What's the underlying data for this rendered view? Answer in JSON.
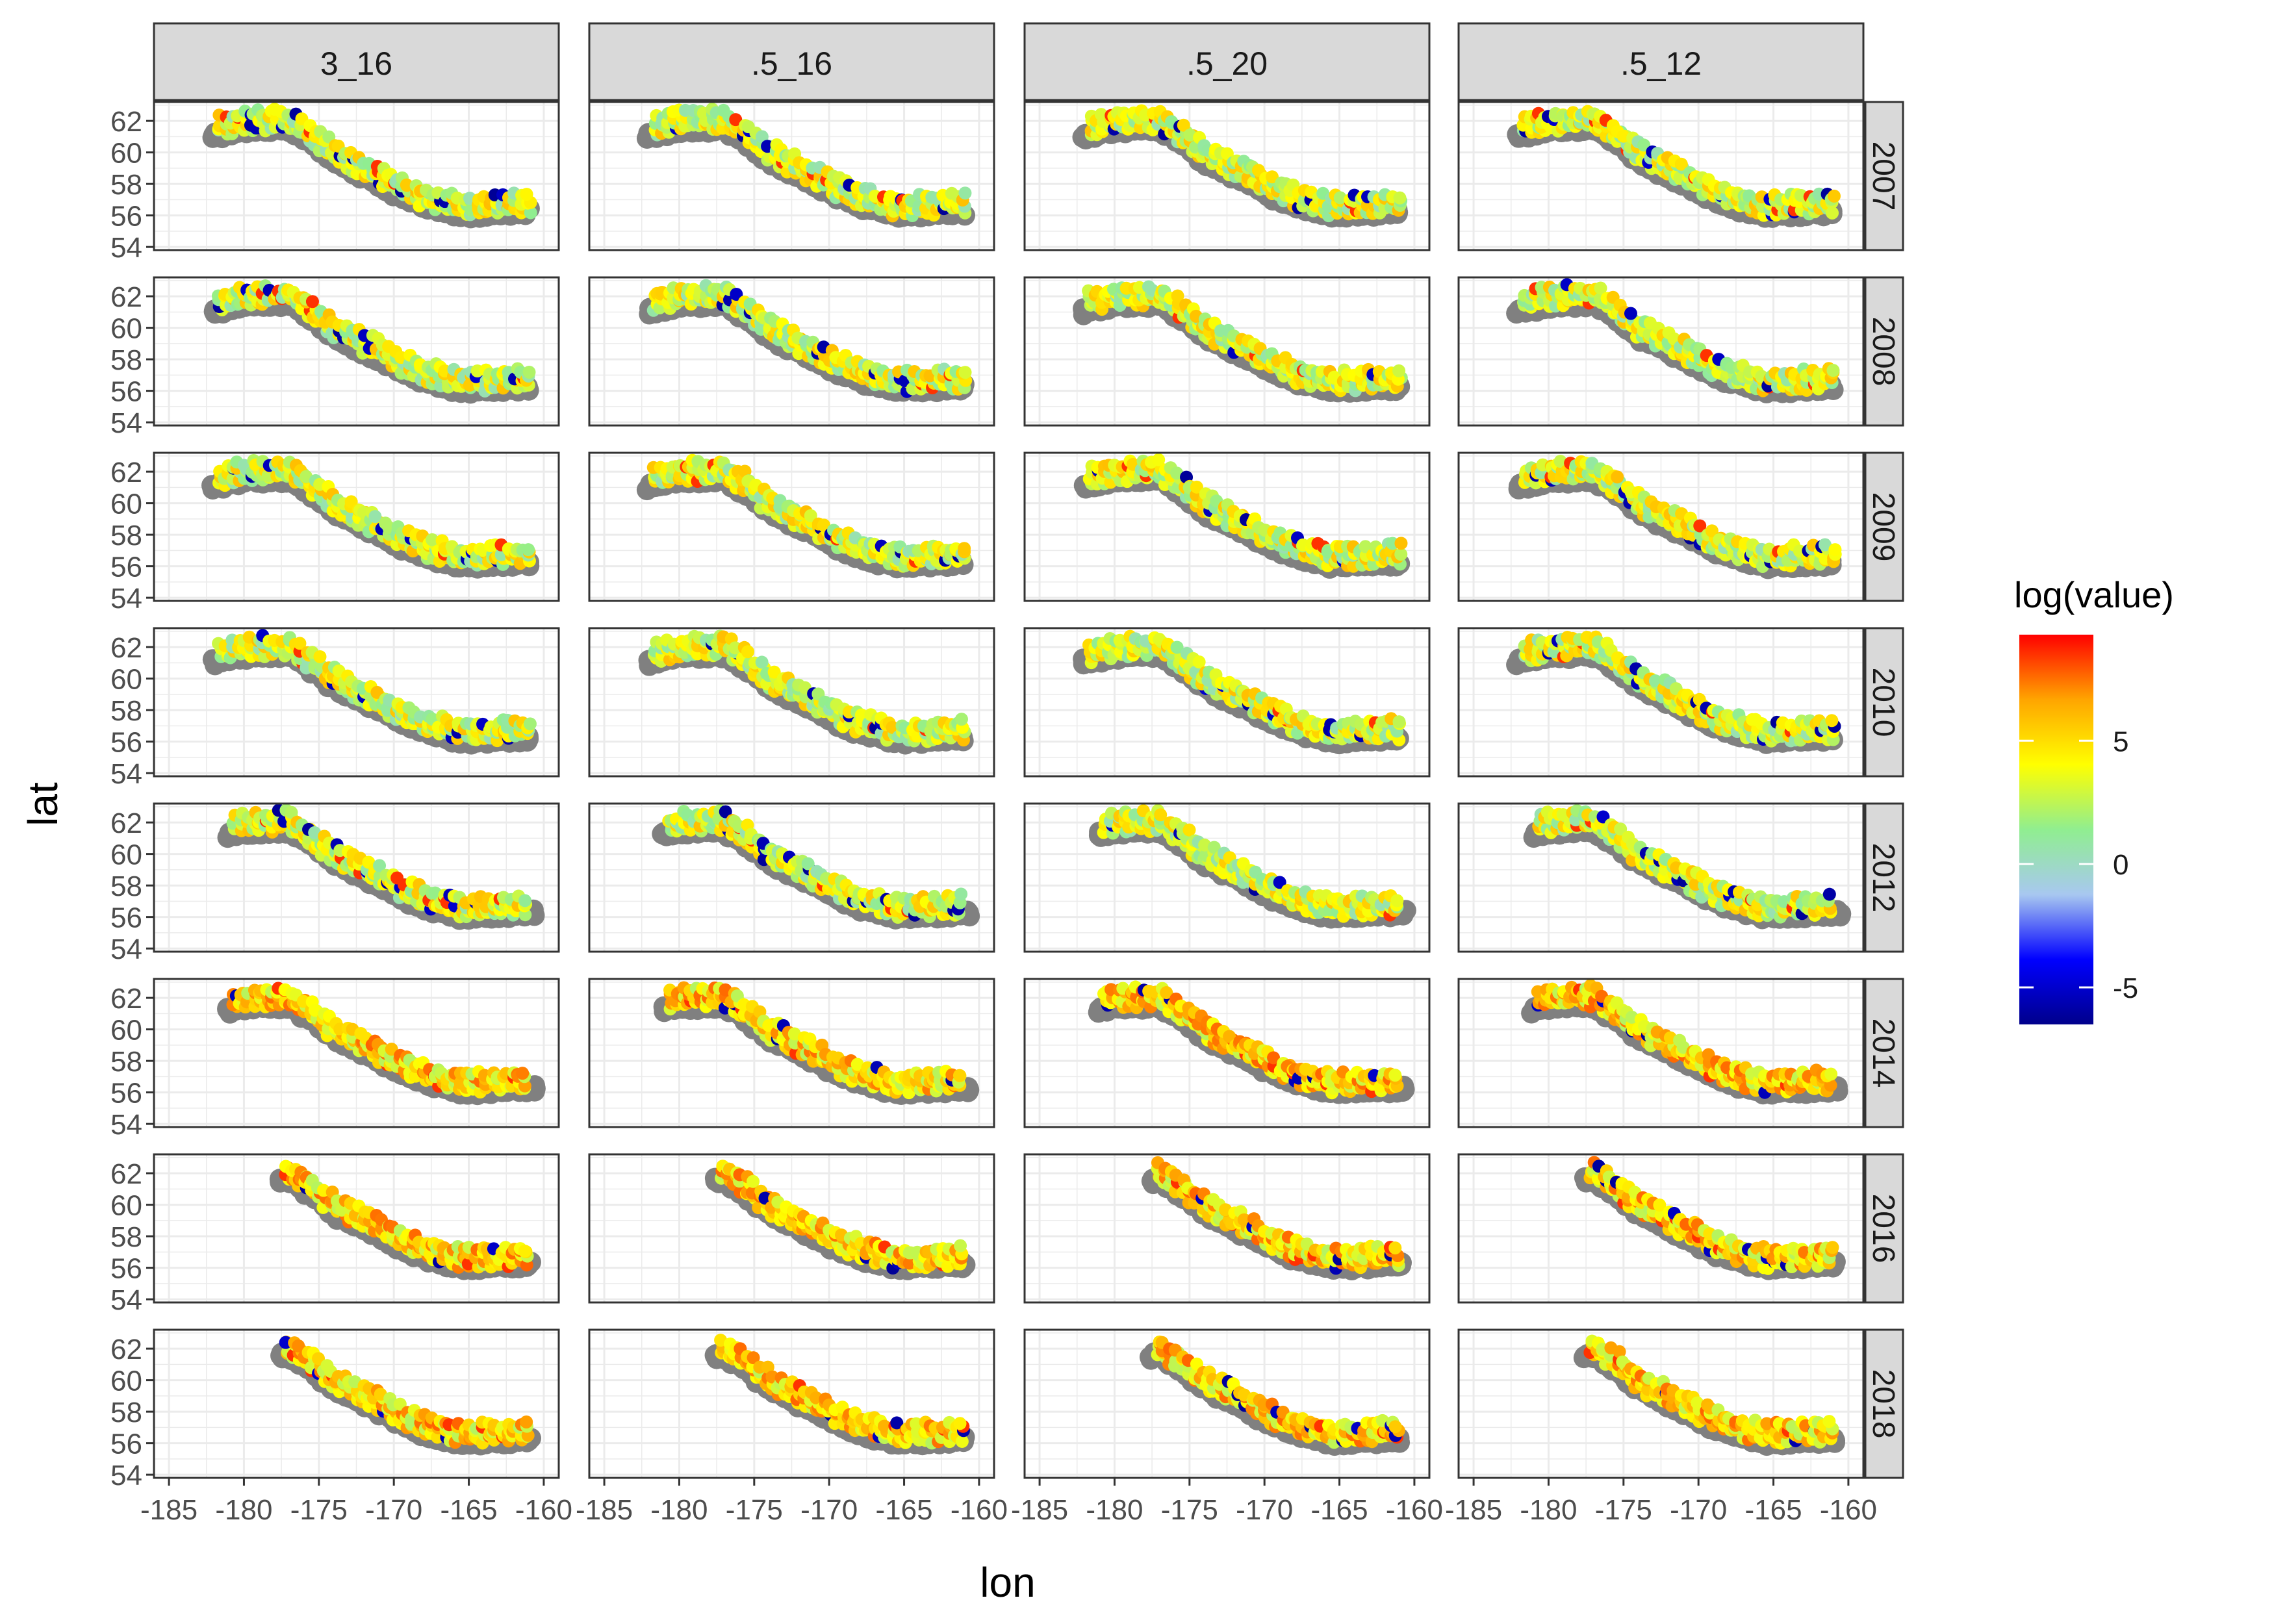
{
  "chart_data": {
    "type": "scatter",
    "title": "",
    "xlabel": "lon",
    "ylabel": "lat",
    "xlim": [
      -186,
      -159
    ],
    "ylim": [
      53.8,
      63.2
    ],
    "x_ticks": [
      -185,
      -180,
      -175,
      -170,
      -165,
      -160
    ],
    "x_tick_labels": [
      "-185",
      "-180",
      "-175",
      "-170",
      "-165",
      "-160"
    ],
    "y_ticks": [
      54,
      56,
      58,
      60,
      62
    ],
    "y_tick_labels": [
      "54",
      "56",
      "58",
      "60",
      "62"
    ],
    "grid": true,
    "facet_columns": [
      "3_16",
      ".5_16",
      ".5_20",
      ".5_12"
    ],
    "facet_rows": [
      "2007",
      "2008",
      "2009",
      "2010",
      "2012",
      "2014",
      "2016",
      "2018"
    ],
    "color_scale": {
      "title": "log(value)",
      "breaks": [
        5,
        0,
        -5
      ],
      "break_labels": [
        "5",
        "0",
        "-5"
      ],
      "limits": [
        -6.5,
        9.3
      ],
      "colors": [
        "#00008b",
        "#0000ff",
        "#a8c8f0",
        "#90ee90",
        "#ffff00",
        "#ffa500",
        "#ff0000"
      ],
      "no_data_color": "#808080",
      "legend_position": "right"
    },
    "survey_track": [
      [
        -182,
        61.6
      ],
      [
        -180,
        62.0
      ],
      [
        -177,
        62.1
      ],
      [
        -175.5,
        61.2
      ],
      [
        -174,
        60.0
      ],
      [
        -172.5,
        59.3
      ],
      [
        -171,
        58.6
      ],
      [
        -169.5,
        57.8
      ],
      [
        -168,
        57.2
      ],
      [
        -165.5,
        56.6
      ],
      [
        -163,
        56.7
      ],
      [
        -160.5,
        56.8
      ]
    ],
    "track_latitude_spread": 1.3
  }
}
